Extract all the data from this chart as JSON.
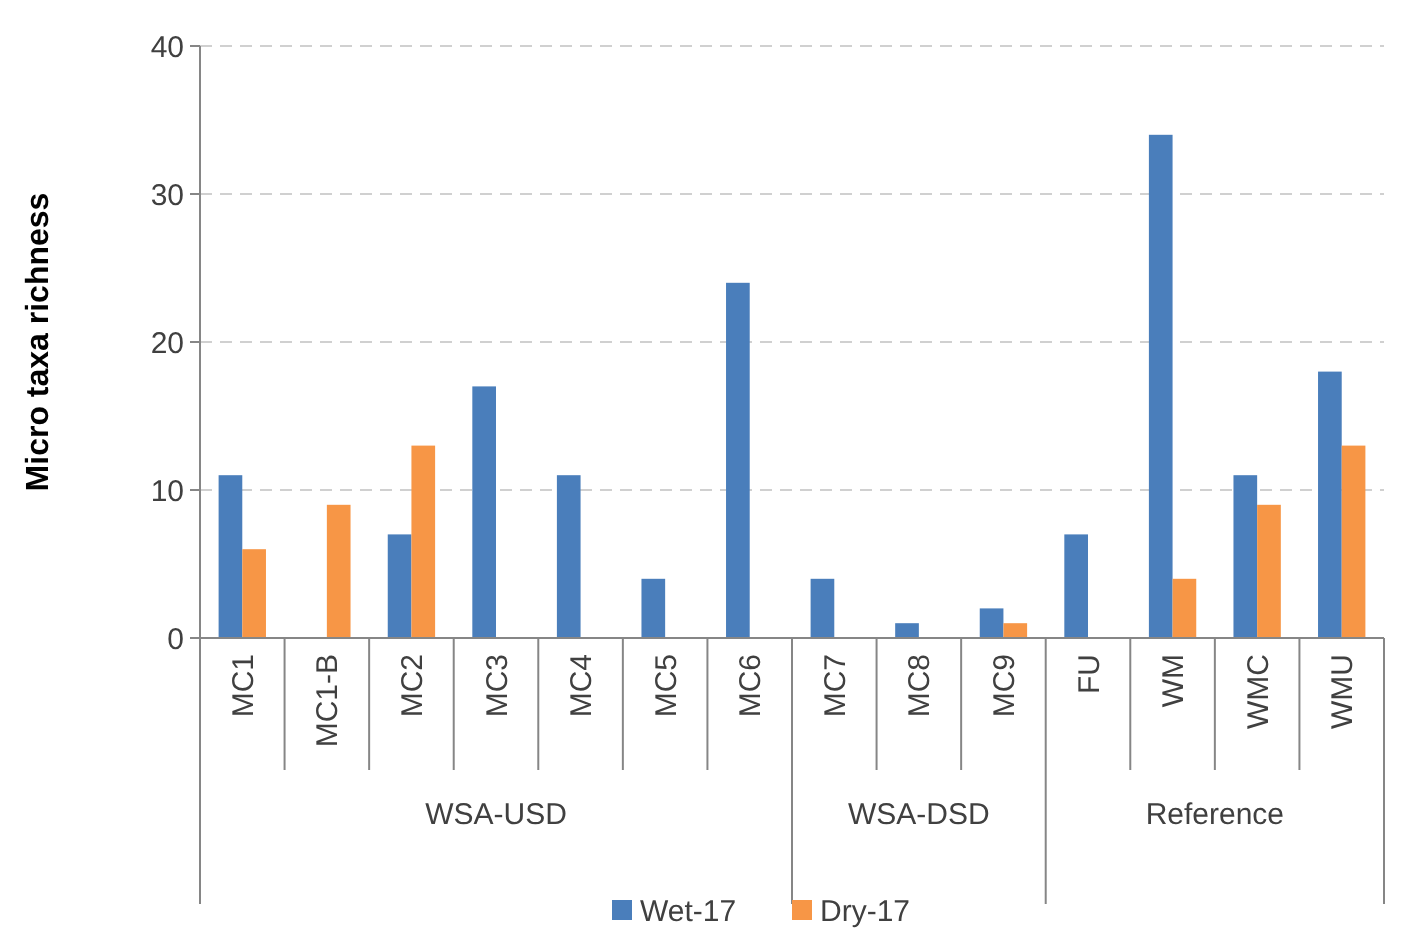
{
  "chart_data": {
    "type": "bar",
    "ylabel": "Micro taxa richness",
    "categories": [
      "MC1",
      "MC1-B",
      "MC2",
      "MC3",
      "MC4",
      "MC5",
      "MC6",
      "MC7",
      "MC8",
      "MC9",
      "FU",
      "WM",
      "WMC",
      "WMU"
    ],
    "series": [
      {
        "name": "Wet-17",
        "color": "#4a7ebb",
        "values": [
          11,
          0,
          7,
          17,
          11,
          4,
          24,
          4,
          1,
          2,
          7,
          34,
          11,
          18
        ]
      },
      {
        "name": "Dry-17",
        "color": "#f79646",
        "values": [
          6,
          9,
          13,
          0,
          0,
          0,
          0,
          0,
          0,
          1,
          0,
          4,
          9,
          13
        ]
      }
    ],
    "annotations": [
      "WSA-USD",
      "WSA-DSD",
      "Reference"
    ],
    "ylim": [
      0,
      40
    ],
    "yticks": [
      0,
      10,
      20,
      30,
      40
    ],
    "grid": "y",
    "legend": "bottom"
  }
}
